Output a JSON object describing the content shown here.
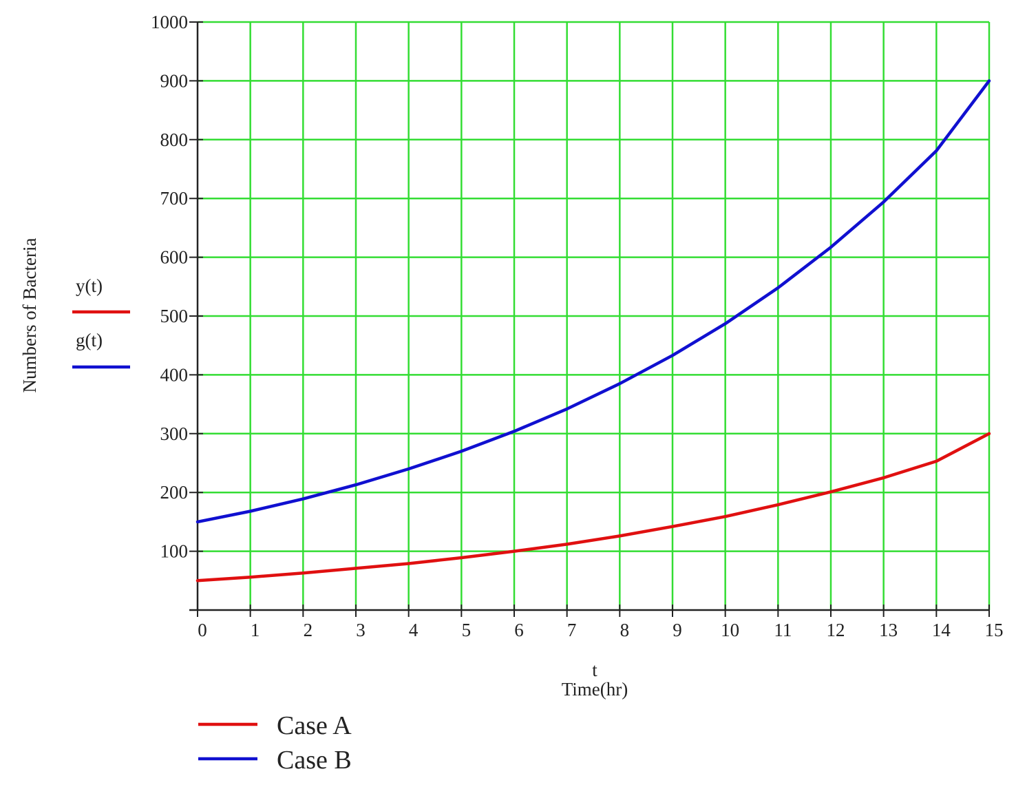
{
  "chart_data": {
    "type": "line",
    "title": "",
    "xlabel_var": "t",
    "xlabel": "Time(hr)",
    "ylabel": "Numbers of Bacteria",
    "xlim": [
      0,
      15
    ],
    "ylim": [
      0,
      1000
    ],
    "x_ticks": [
      0,
      1,
      2,
      3,
      4,
      5,
      6,
      7,
      8,
      9,
      10,
      11,
      12,
      13,
      14,
      15
    ],
    "y_ticks": [
      100,
      200,
      300,
      400,
      500,
      600,
      700,
      800,
      900,
      1000
    ],
    "grid": true,
    "grid_color": "#33dd33",
    "x": [
      0,
      1,
      2,
      3,
      4,
      5,
      6,
      7,
      8,
      9,
      10,
      11,
      12,
      13,
      14,
      15
    ],
    "series": [
      {
        "name": "y(t)",
        "color": "#e01010",
        "values": [
          50,
          56,
          63,
          71,
          79,
          89,
          100,
          112,
          126,
          142,
          159,
          179,
          201,
          225,
          253,
          300
        ]
      },
      {
        "name": "g(t)",
        "color": "#1010d0",
        "values": [
          150,
          168,
          189,
          213,
          240,
          270,
          304,
          342,
          385,
          433,
          487,
          548,
          617,
          694,
          781,
          900
        ]
      }
    ],
    "legend": {
      "position": "bottom-left",
      "entries": [
        {
          "label": "Case A",
          "color": "#e01010"
        },
        {
          "label": "Case B",
          "color": "#1010d0"
        }
      ]
    }
  }
}
